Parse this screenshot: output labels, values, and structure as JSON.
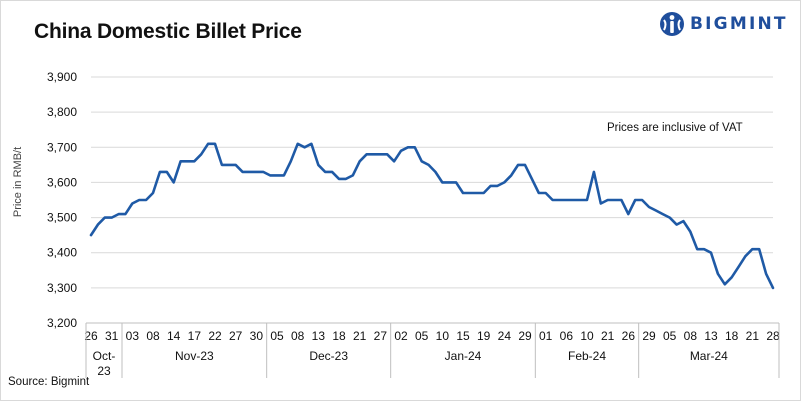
{
  "title": "China Domestic Billet Price",
  "brand": {
    "name": "BIGMINT",
    "color": "#1f4e9c"
  },
  "source": "Source: Bigmint",
  "chart_data": {
    "type": "line",
    "title": "China Domestic Billet Price",
    "ylabel": "Price in RMB/t",
    "xlabel": "",
    "ylim": [
      3200,
      3900
    ],
    "yticks": [
      3200,
      3300,
      3400,
      3500,
      3600,
      3700,
      3800,
      3900
    ],
    "ytick_labels": [
      "3,200",
      "3,300",
      "3,400",
      "3,500",
      "3,600",
      "3,700",
      "3,800",
      "3,900"
    ],
    "grid": "horizontal",
    "annotation": "Prices are inclusive of VAT",
    "line_color": "#1f5aa6",
    "x_tick_labels": [
      "26",
      "31",
      "03",
      "08",
      "14",
      "17",
      "22",
      "27",
      "30",
      "05",
      "08",
      "13",
      "18",
      "21",
      "27",
      "02",
      "05",
      "10",
      "15",
      "19",
      "24",
      "29",
      "01",
      "06",
      "10",
      "21",
      "26",
      "29",
      "05",
      "08",
      "13",
      "18",
      "21",
      "28"
    ],
    "months": [
      {
        "label": "Oct-\n23",
        "start": 0,
        "end": 2
      },
      {
        "label": "Nov-23",
        "start": 2,
        "end": 9
      },
      {
        "label": "Dec-23",
        "start": 9,
        "end": 15
      },
      {
        "label": "Jan-24",
        "start": 15,
        "end": 22
      },
      {
        "label": "Feb-24",
        "start": 22,
        "end": 27
      },
      {
        "label": "Mar-24",
        "start": 27,
        "end": 34
      }
    ],
    "series": [
      {
        "values": [
          3450,
          3480,
          3500,
          3500,
          3510,
          3510,
          3540,
          3550,
          3550,
          3570,
          3630,
          3630,
          3600,
          3660,
          3660,
          3660,
          3680,
          3710,
          3710,
          3650,
          3650,
          3650,
          3630,
          3630,
          3630,
          3630,
          3620,
          3620,
          3620,
          3660,
          3710,
          3700,
          3710,
          3650,
          3630,
          3630,
          3610,
          3610,
          3620,
          3660,
          3680,
          3680,
          3680,
          3680,
          3660,
          3690,
          3700,
          3700,
          3660,
          3650,
          3630,
          3600,
          3600,
          3600,
          3570,
          3570,
          3570,
          3570,
          3590,
          3590,
          3600,
          3620,
          3650,
          3650,
          3610,
          3570,
          3570,
          3550,
          3550,
          3550,
          3550,
          3550,
          3550,
          3630,
          3540,
          3550,
          3550,
          3550,
          3510,
          3550,
          3550,
          3530,
          3520,
          3510,
          3500,
          3480,
          3490,
          3460,
          3410,
          3410,
          3400,
          3340,
          3310,
          3330,
          3360,
          3390,
          3410,
          3410,
          3340,
          3300
        ]
      }
    ]
  }
}
